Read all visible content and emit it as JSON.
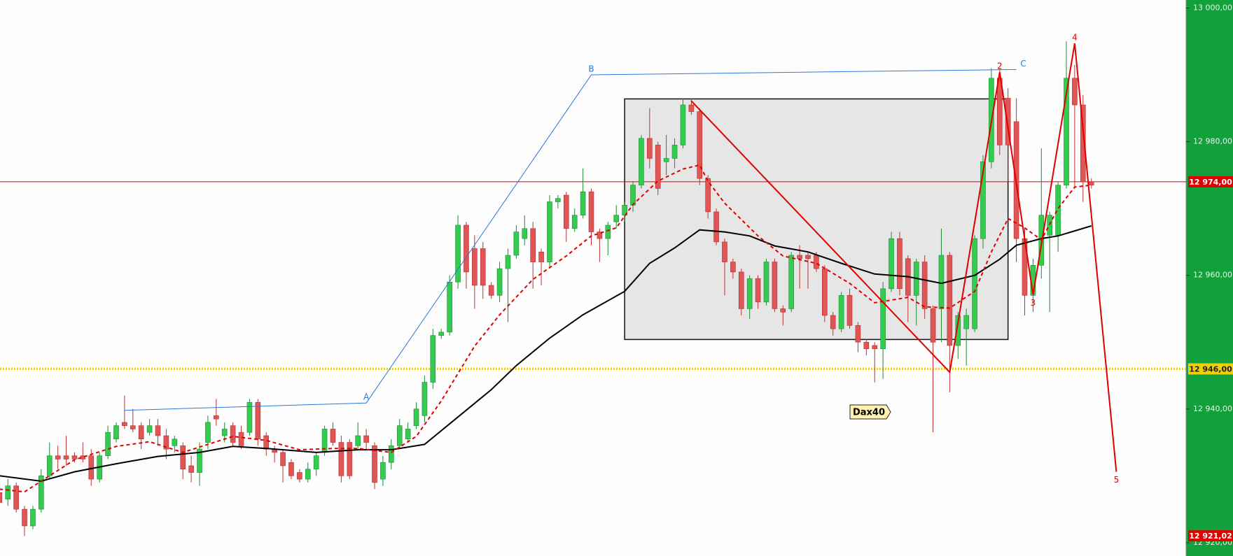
{
  "chart_data": {
    "type": "candlestick",
    "ylim": [
      12918,
      13001.2
    ],
    "yticks": [
      {
        "value": 13000,
        "label": "13 000,00"
      },
      {
        "value": 12980,
        "label": "12 980,00"
      },
      {
        "value": 12960,
        "label": "12 960,00"
      },
      {
        "value": 12940,
        "label": "12 940,00"
      },
      {
        "value": 12920,
        "label": "12 920,00"
      }
    ],
    "up_color": "#33cc4f",
    "down_color": "#e05555",
    "candles": [
      [
        12927.5,
        12928,
        12925.5,
        12926
      ],
      [
        12926.5,
        12929.5,
        12925.5,
        12928.5
      ],
      [
        12928.5,
        12929,
        12924.5,
        12925
      ],
      [
        12925,
        12925.5,
        12921,
        12922.5
      ],
      [
        12922.5,
        12925.5,
        12922,
        12925
      ],
      [
        12925,
        12931,
        12924.5,
        12930
      ],
      [
        12930,
        12935,
        12929.5,
        12933
      ],
      [
        12933,
        12934.5,
        12931,
        12932.5
      ],
      [
        12933,
        12936,
        12931.5,
        12932.5
      ],
      [
        12933,
        12933.5,
        12932,
        12932.5
      ],
      [
        12933,
        12935,
        12932,
        12932.5
      ],
      [
        12933,
        12934,
        12928.5,
        12929.5
      ],
      [
        12929.5,
        12933.5,
        12929,
        12933
      ],
      [
        12933,
        12937.5,
        12932.5,
        12936.5
      ],
      [
        12935.5,
        12938,
        12935,
        12937.5
      ],
      [
        12938,
        12942,
        12937,
        12937.5
      ],
      [
        12937.5,
        12940,
        12936.5,
        12937
      ],
      [
        12937.5,
        12938,
        12934,
        12935.5
      ],
      [
        12936.5,
        12938.5,
        12936,
        12937.5
      ],
      [
        12937.5,
        12938.5,
        12934.5,
        12936
      ],
      [
        12936,
        12937,
        12932.5,
        12934
      ],
      [
        12934.5,
        12936,
        12933.5,
        12935.5
      ],
      [
        12934.5,
        12935,
        12929.5,
        12931
      ],
      [
        12931.5,
        12933,
        12929,
        12930.5
      ],
      [
        12930.5,
        12935,
        12928.5,
        12934
      ],
      [
        12935,
        12939,
        12934,
        12938
      ],
      [
        12939,
        12941.5,
        12937.5,
        12938.5
      ],
      [
        12936,
        12938,
        12935,
        12937
      ],
      [
        12937.5,
        12938,
        12934.5,
        12935
      ],
      [
        12936.5,
        12937.5,
        12934,
        12934.5
      ],
      [
        12936.5,
        12941.5,
        12936,
        12941
      ],
      [
        12941,
        12941.5,
        12934.5,
        12935.5
      ],
      [
        12936,
        12936.5,
        12933,
        12934
      ],
      [
        12934,
        12934.5,
        12932,
        12933.5
      ],
      [
        12933.5,
        12934,
        12929,
        12931.5
      ],
      [
        12932,
        12932.5,
        12929.5,
        12930
      ],
      [
        12930.5,
        12931,
        12929,
        12929.5
      ],
      [
        12929.5,
        12932,
        12929,
        12931
      ],
      [
        12931,
        12933.5,
        12930,
        12933
      ],
      [
        12933.5,
        12937.5,
        12933,
        12937
      ],
      [
        12937,
        12938,
        12934.5,
        12935
      ],
      [
        12935,
        12936,
        12929,
        12930
      ],
      [
        12935,
        12935.5,
        12929.5,
        12930
      ],
      [
        12934.5,
        12938,
        12934,
        12936
      ],
      [
        12936,
        12937,
        12934,
        12935
      ],
      [
        12934.5,
        12935,
        12928,
        12929
      ],
      [
        12929.5,
        12933,
        12928.5,
        12932
      ],
      [
        12932,
        12935.5,
        12931,
        12934.5
      ],
      [
        12934.5,
        12938.5,
        12934,
        12937.5
      ],
      [
        12935.5,
        12938,
        12935,
        12937
      ],
      [
        12937.5,
        12941,
        12937,
        12940
      ],
      [
        12939,
        12945,
        12938,
        12944
      ],
      [
        12944,
        12952,
        12943,
        12951
      ],
      [
        12951,
        12952,
        12950.5,
        12951.5
      ],
      [
        12951.5,
        12960,
        12951,
        12959
      ],
      [
        12959,
        12969,
        12958,
        12967.5
      ],
      [
        12967.5,
        12968,
        12958,
        12960.5
      ],
      [
        12964,
        12966,
        12955,
        12958.5
      ],
      [
        12964,
        12965,
        12956.5,
        12958.5
      ],
      [
        12958.5,
        12959,
        12956.5,
        12957
      ],
      [
        12957,
        12962,
        12956,
        12961
      ],
      [
        12961,
        12964,
        12953,
        12963
      ],
      [
        12963,
        12967.5,
        12962.5,
        12966.5
      ],
      [
        12965.5,
        12969,
        12964.5,
        12967
      ],
      [
        12967,
        12968,
        12958,
        12962
      ],
      [
        12963.5,
        12964,
        12958.5,
        12962
      ],
      [
        12962,
        12972,
        12961,
        12971
      ],
      [
        12971,
        12972,
        12970,
        12971.5
      ],
      [
        12972,
        12972.5,
        12965,
        12967
      ],
      [
        12967,
        12970,
        12966.5,
        12969
      ],
      [
        12969,
        12976,
        12968.5,
        12972.5
      ],
      [
        12972.5,
        12973,
        12964.5,
        12966.5
      ],
      [
        12966.5,
        12967,
        12962,
        12965.5
      ],
      [
        12965.5,
        12968,
        12963,
        12967.5
      ],
      [
        12968,
        12970.5,
        12967,
        12969
      ],
      [
        12969,
        12971,
        12968,
        12970.5
      ],
      [
        12970.5,
        12974,
        12969.5,
        12973.5
      ],
      [
        12973.5,
        12981,
        12973,
        12980.5
      ],
      [
        12980.5,
        12985,
        12976,
        12977.5
      ],
      [
        12979.5,
        12980,
        12972,
        12973
      ],
      [
        12977,
        12981,
        12975,
        12977.5
      ],
      [
        12977.5,
        12980.5,
        12976,
        12979.5
      ],
      [
        12979.5,
        12986.5,
        12979,
        12985.5
      ],
      [
        12985.5,
        12986.5,
        12984,
        12984.5
      ],
      [
        12984.5,
        12985,
        12973.5,
        12974.5
      ],
      [
        12974.5,
        12975,
        12968.5,
        12969.5
      ],
      [
        12969.5,
        12970,
        12964.5,
        12965
      ],
      [
        12965,
        12965.5,
        12957,
        12962
      ],
      [
        12962,
        12962.5,
        12959.5,
        12960.5
      ],
      [
        12960.5,
        12961,
        12954,
        12955
      ],
      [
        12955,
        12960,
        12953.5,
        12959.5
      ],
      [
        12959.5,
        12960,
        12955,
        12956
      ],
      [
        12956,
        12962.5,
        12955.5,
        12962
      ],
      [
        12962,
        12962.5,
        12954.5,
        12955
      ],
      [
        12955,
        12955.5,
        12952.5,
        12954.5
      ],
      [
        12955,
        12963.5,
        12954.5,
        12963
      ],
      [
        12963,
        12964.5,
        12958,
        12962.5
      ],
      [
        12963,
        12963.5,
        12958,
        12962.5
      ],
      [
        12963,
        12963.5,
        12960.5,
        12961
      ],
      [
        12961,
        12961.5,
        12953,
        12954
      ],
      [
        12954,
        12954.5,
        12951,
        12952
      ],
      [
        12952,
        12957.5,
        12951.5,
        12957
      ],
      [
        12957,
        12958,
        12952,
        12952.5
      ],
      [
        12952.5,
        12953,
        12948.5,
        12950
      ],
      [
        12950,
        12950.5,
        12948,
        12949
      ],
      [
        12949.5,
        12950,
        12944,
        12949
      ],
      [
        12949,
        12959,
        12944.5,
        12958
      ],
      [
        12958,
        12966.5,
        12957.5,
        12965.5
      ],
      [
        12965.5,
        12966.5,
        12957,
        12958
      ],
      [
        12962.5,
        12963,
        12953,
        12957
      ],
      [
        12957,
        12962.5,
        12952.5,
        12962
      ],
      [
        12962,
        12963,
        12953.5,
        12955
      ],
      [
        12955,
        12955.5,
        12936.5,
        12950
      ],
      [
        12955,
        12967,
        12950,
        12963
      ],
      [
        12963,
        12963.5,
        12942.5,
        12949.5
      ],
      [
        12949.5,
        12954.5,
        12947.5,
        12954
      ],
      [
        12952,
        12955,
        12946.5,
        12954
      ],
      [
        12952,
        12966,
        12951.5,
        12965.5
      ],
      [
        12965.5,
        12978,
        12964,
        12977
      ],
      [
        12977,
        12991,
        12976,
        12989.5
      ],
      [
        12989.5,
        12991,
        12978,
        12979.5
      ],
      [
        12986.5,
        12988,
        12974,
        12979.5
      ],
      [
        12983,
        12986.5,
        12962,
        12965.5
      ],
      [
        12965.5,
        12967,
        12954,
        12957
      ],
      [
        12957,
        12962.5,
        12954.5,
        12961.5
      ],
      [
        12961.5,
        12979,
        12959.5,
        12969
      ],
      [
        12966,
        12969.5,
        12954.5,
        12969
      ],
      [
        12966,
        12974,
        12963.5,
        12973.5
      ],
      [
        12973.5,
        12995,
        12973,
        12989.5
      ],
      [
        12989.5,
        12991.5,
        12973,
        12985.5
      ],
      [
        12985.5,
        12987,
        12971,
        12974
      ],
      [
        12974,
        12974.5,
        12973,
        12973.5
      ]
    ],
    "series": [
      {
        "color": "#000000",
        "dash": false,
        "x": [
          0,
          5,
          9,
          14,
          19,
          24,
          28,
          32,
          38,
          43,
          47,
          51,
          55,
          59,
          62,
          66,
          70,
          75,
          78,
          81,
          84,
          87,
          90,
          93,
          97,
          101,
          105,
          109,
          113,
          117,
          120,
          122,
          125,
          127,
          131
        ],
        "values": [
          12930,
          12929.2,
          12930.6,
          12931.8,
          12932.9,
          12933.5,
          12934.4,
          12934.1,
          12933.5,
          12933.9,
          12933.9,
          12934.7,
          12938.8,
          12942.9,
          12946.5,
          12950.6,
          12954.1,
          12957.6,
          12961.8,
          12964.1,
          12966.8,
          12966.5,
          12965.9,
          12964.4,
          12963.5,
          12961.8,
          12960.2,
          12959.8,
          12958.8,
          12960,
          12962.4,
          12964.5,
          12965.5,
          12965.9,
          12967.4
        ]
      },
      {
        "color": "#e00000",
        "dash": true,
        "x": [
          0,
          3,
          6,
          9,
          14,
          18,
          22,
          25,
          28,
          32,
          36,
          40,
          43,
          47,
          50,
          53,
          57,
          60,
          64,
          68,
          71,
          74,
          76,
          79,
          82,
          84,
          85,
          87,
          91,
          94,
          98,
          102,
          105,
          109,
          111,
          114,
          117,
          119,
          121,
          123,
          125,
          127,
          129,
          131
        ],
        "values": [
          12928,
          12927.6,
          12930,
          12932.4,
          12934.4,
          12935.1,
          12933.5,
          12934.7,
          12935.9,
          12935.3,
          12933.9,
          12934.1,
          12934.1,
          12933.5,
          12935.9,
          12941.2,
          12949.4,
          12954.1,
          12959.4,
          12962.9,
          12965.9,
          12967.1,
          12970.6,
          12974.1,
          12975.9,
          12976.5,
          12974.1,
          12970.8,
          12965.9,
          12962.9,
          12961.8,
          12958.8,
          12955.9,
          12956.7,
          12955.3,
          12955.1,
          12957.6,
          12963.5,
          12968.5,
          12967.1,
          12965.3,
          12970,
          12973.2,
          12973.5
        ]
      }
    ],
    "price_lines": [
      {
        "value": 12974,
        "label": "12 974,00",
        "color": "#e00000",
        "style": "solid"
      },
      {
        "value": 12946,
        "label": "12 946,00",
        "color": "#f0d000",
        "style": "dotted"
      },
      {
        "value": 12921.02,
        "label": "12 921,02",
        "color": "#e00000",
        "style": "none"
      }
    ],
    "box": {
      "x": [
        75,
        121
      ],
      "y": [
        12950.4,
        12986.4
      ]
    },
    "waves": [
      {
        "color": "#2a78d8",
        "points": [
          {
            "x": 15,
            "y": 12939.8
          },
          {
            "x": 44,
            "y": 12940.9,
            "label": "A"
          },
          {
            "x": 71,
            "y": 12990,
            "label": "B"
          },
          {
            "x": 122,
            "y": 12990.8,
            "label": "C"
          }
        ]
      },
      {
        "color": "#e00000",
        "points": [
          {
            "x": 83,
            "y": 12986.1
          },
          {
            "x": 114,
            "y": 12945.5
          },
          {
            "x": 120,
            "y": 12990.4,
            "label": "2"
          },
          {
            "x": 124,
            "y": 12957.1,
            "label": "3"
          },
          {
            "x": 129,
            "y": 12994.7,
            "label": "4"
          },
          {
            "x": 134,
            "y": 12930.6,
            "label": "5"
          }
        ]
      }
    ],
    "marker_label": "Dax40"
  }
}
